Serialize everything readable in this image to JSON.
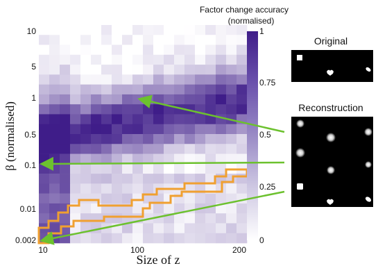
{
  "chart_data": {
    "type": "heatmap",
    "xlabel": "Size of z",
    "ylabel": "β (normalised)",
    "x_scale": "log",
    "y_scale": "log",
    "x_ticks": [
      "10",
      "100",
      "200"
    ],
    "y_ticks": [
      "10",
      "5",
      "1",
      "0.5",
      "0.1",
      "0.01",
      "0.002"
    ],
    "xlim": [
      10,
      200
    ],
    "ylim": [
      0.002,
      10
    ],
    "colorbar": {
      "title_line1": "Factor change accuracy",
      "title_line2": "(normalised)",
      "ticks": [
        "1",
        "0.75",
        "0.5",
        "0.25",
        "0"
      ],
      "range": [
        0,
        1
      ],
      "color_low": "#ffffff",
      "color_high": "#3f1d89"
    },
    "highlight": {
      "outline_color": "#f0a030",
      "arrow_color": "#6cc12e"
    },
    "panels": [
      {
        "title": "Original"
      },
      {
        "title": "Reconstruction"
      }
    ]
  }
}
